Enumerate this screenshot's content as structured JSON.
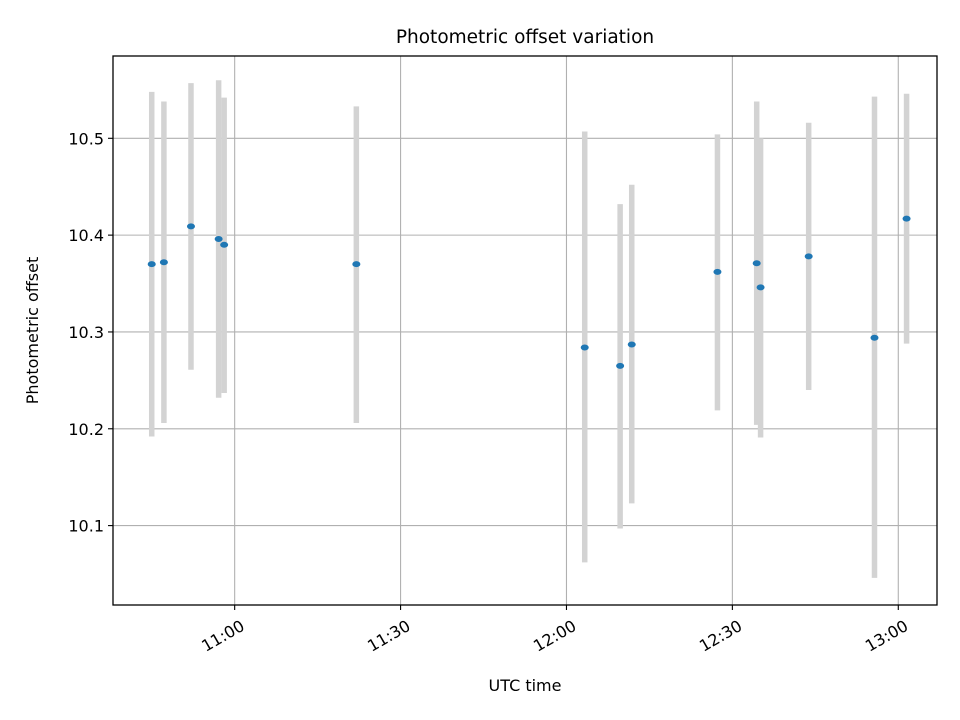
{
  "chart_data": {
    "type": "scatter",
    "title": "Photometric offset variation",
    "xlabel": "UTC time",
    "ylabel": "Photometric offset",
    "x_unit": "UTC clock time (hours)",
    "xlim": [
      10.6333,
      13.1167
    ],
    "ylim": [
      10.018,
      10.585
    ],
    "x_ticks": [
      {
        "value": 11.0,
        "label": "11:00"
      },
      {
        "value": 11.5,
        "label": "11:30"
      },
      {
        "value": 12.0,
        "label": "12:00"
      },
      {
        "value": 12.5,
        "label": "12:30"
      },
      {
        "value": 13.0,
        "label": "13:00"
      }
    ],
    "y_ticks": [
      {
        "value": 10.1,
        "label": "10.1"
      },
      {
        "value": 10.2,
        "label": "10.2"
      },
      {
        "value": 10.3,
        "label": "10.3"
      },
      {
        "value": 10.4,
        "label": "10.4"
      },
      {
        "value": 10.5,
        "label": "10.5"
      }
    ],
    "grid": true,
    "marker_color": "#1f77b4",
    "errorbar_color": "#d3d3d3",
    "points": [
      {
        "x": 10.75,
        "y": 10.37,
        "ymin": 10.192,
        "ymax": 10.548
      },
      {
        "x": 10.7867,
        "y": 10.372,
        "ymin": 10.206,
        "ymax": 10.538
      },
      {
        "x": 10.8683,
        "y": 10.409,
        "ymin": 10.261,
        "ymax": 10.557
      },
      {
        "x": 10.9517,
        "y": 10.396,
        "ymin": 10.232,
        "ymax": 10.56
      },
      {
        "x": 10.9683,
        "y": 10.39,
        "ymin": 10.237,
        "ymax": 10.542
      },
      {
        "x": 11.3667,
        "y": 10.37,
        "ymin": 10.206,
        "ymax": 10.533
      },
      {
        "x": 12.055,
        "y": 10.284,
        "ymin": 10.062,
        "ymax": 10.507
      },
      {
        "x": 12.1617,
        "y": 10.265,
        "ymin": 10.097,
        "ymax": 10.432
      },
      {
        "x": 12.1967,
        "y": 10.287,
        "ymin": 10.123,
        "ymax": 10.452
      },
      {
        "x": 12.455,
        "y": 10.362,
        "ymin": 10.219,
        "ymax": 10.504
      },
      {
        "x": 12.5733,
        "y": 10.371,
        "ymin": 10.204,
        "ymax": 10.538
      },
      {
        "x": 12.585,
        "y": 10.346,
        "ymin": 10.191,
        "ymax": 10.5
      },
      {
        "x": 12.73,
        "y": 10.378,
        "ymin": 10.24,
        "ymax": 10.516
      },
      {
        "x": 12.9283,
        "y": 10.294,
        "ymin": 10.046,
        "ymax": 10.543
      },
      {
        "x": 13.025,
        "y": 10.417,
        "ymin": 10.288,
        "ymax": 10.546
      }
    ]
  }
}
